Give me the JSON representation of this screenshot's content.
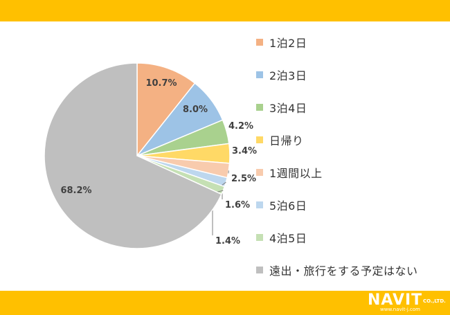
{
  "chart_data": {
    "type": "pie",
    "title": "",
    "categories": [
      "1泊2日",
      "2泊3日",
      "3泊4日",
      "日帰り",
      "1週間以上",
      "5泊6日",
      "4泊5日",
      "遠出・旅行をする予定はない"
    ],
    "values": [
      10.7,
      8.0,
      4.2,
      3.4,
      2.5,
      1.6,
      1.4,
      68.2
    ],
    "value_labels": [
      "10.7%",
      "8.0%",
      "4.2%",
      "3.4%",
      "2.5%",
      "1.6%",
      "1.4%",
      "68.2%"
    ],
    "colors": [
      "#F4B183",
      "#9DC3E6",
      "#A9D18E",
      "#FFD966",
      "#F8CBAD",
      "#BDD7EE",
      "#C5E0B4",
      "#BFBFBF"
    ],
    "legend_position": "right",
    "start_angle_deg": 0,
    "direction": "clockwise"
  },
  "logo": {
    "main": "NAVIT",
    "suffix": "CO.,LTD.",
    "url": "www.navit-j.com"
  },
  "colors": {
    "band": "#FFC000",
    "label_text": "#404040"
  }
}
